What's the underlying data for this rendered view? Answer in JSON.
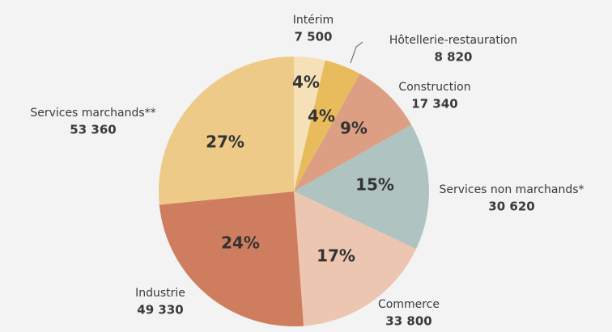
{
  "chart_data": {
    "type": "pie",
    "categories": [
      "Intérim",
      "Hôtellerie-restauration",
      "Construction",
      "Services non marchands*",
      "Commerce",
      "Industrie",
      "Services marchands**"
    ],
    "values": [
      7500,
      8820,
      17340,
      30620,
      33800,
      49330,
      53360
    ],
    "value_labels": [
      "7 500",
      "8 820",
      "17 340",
      "30 620",
      "33 800",
      "49 330",
      "53 360"
    ],
    "shares": [
      4,
      4,
      9,
      15,
      17,
      24,
      27
    ],
    "share_labels": [
      "4%",
      "4%",
      "9%",
      "15%",
      "17%",
      "24%",
      "27%"
    ],
    "colors": [
      "#f5e0b8",
      "#e8bc5c",
      "#dd9f84",
      "#afc3c1",
      "#edc6b2",
      "#cf7d5f",
      "#edca88"
    ]
  }
}
